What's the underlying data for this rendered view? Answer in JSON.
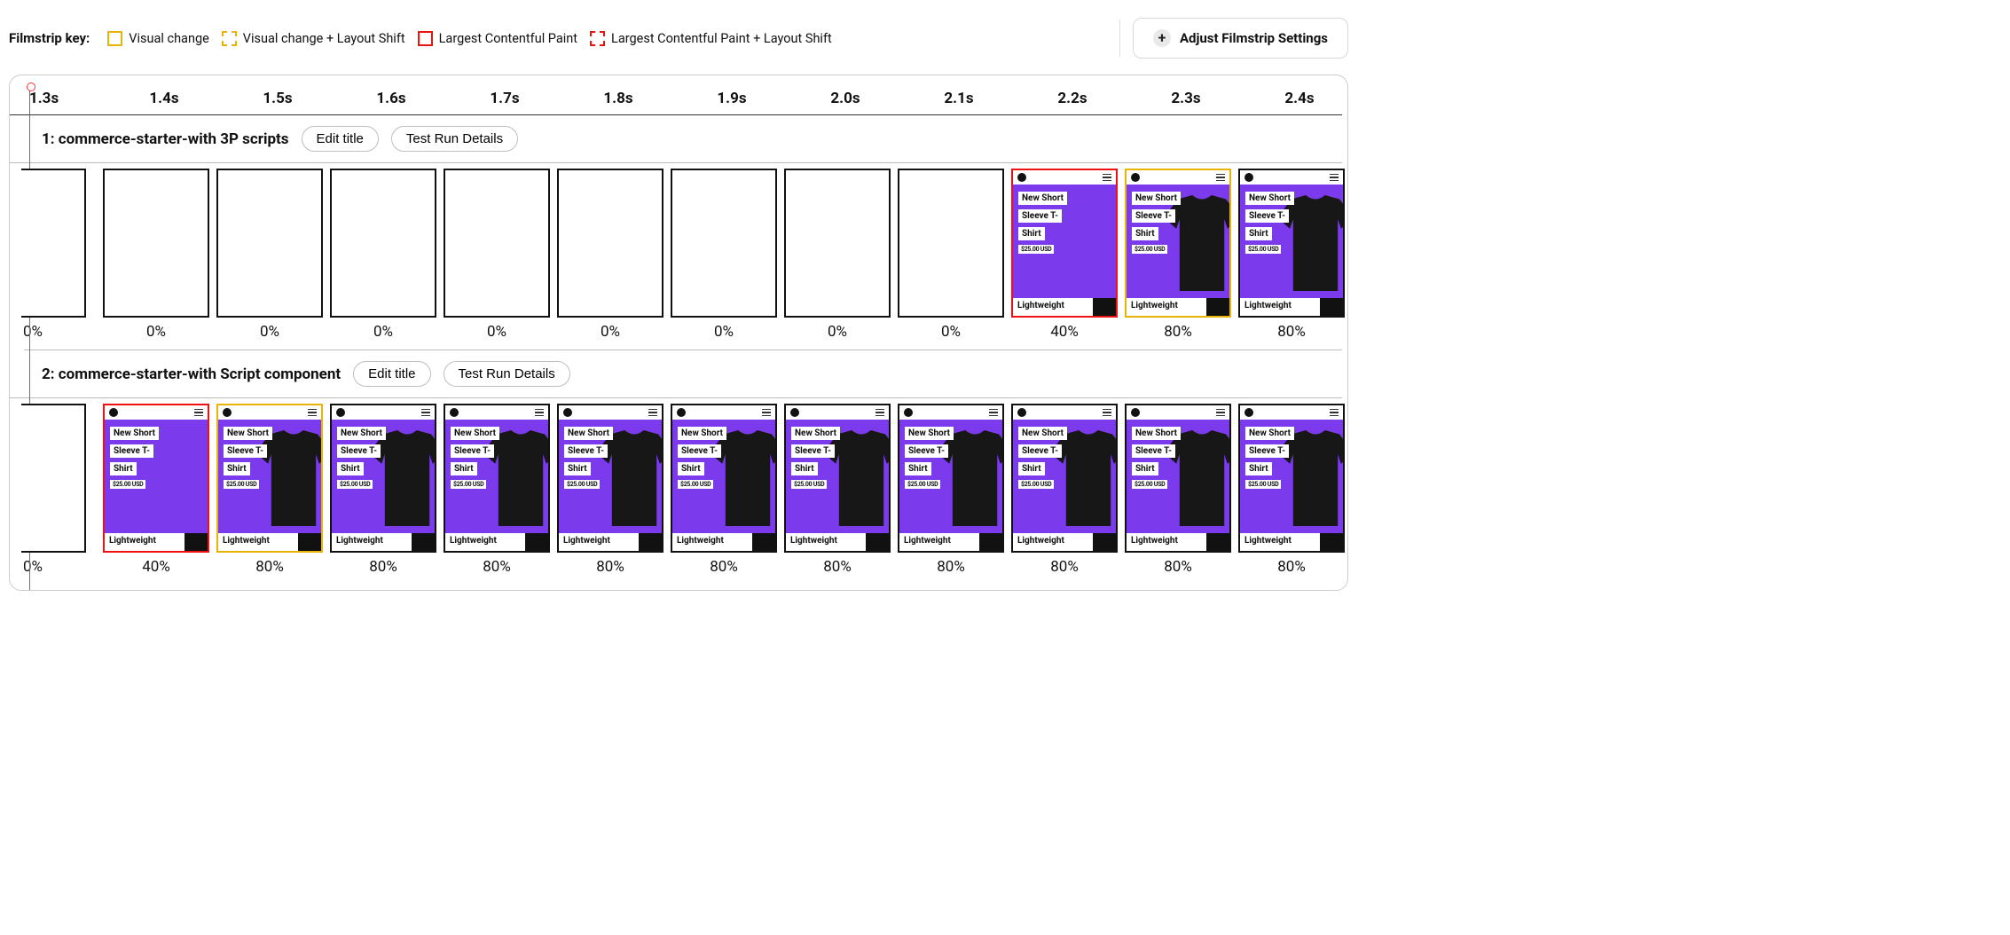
{
  "legend": {
    "key_label": "Filmstrip key:",
    "items": [
      {
        "cls": "visual-change",
        "label": "Visual change"
      },
      {
        "cls": "visual-change-ls",
        "label": "Visual change + Layout Shift"
      },
      {
        "cls": "lcp",
        "label": "Largest Contentful Paint"
      },
      {
        "cls": "lcp-ls",
        "label": "Largest Contentful Paint + Layout Shift"
      }
    ]
  },
  "adjust_button_label": "Adjust Filmstrip Settings",
  "timeline": {
    "ticks": [
      "1.3s",
      "1.4s",
      "1.5s",
      "1.6s",
      "1.7s",
      "1.8s",
      "1.9s",
      "2.0s",
      "2.1s",
      "2.2s",
      "2.3s",
      "2.4s"
    ]
  },
  "colors": {
    "visual_change": "#eab308",
    "lcp": "#ee1111",
    "frame_border": "#111111",
    "product_bg": "#7c3aed",
    "tshirt": "#171717"
  },
  "product_mock": {
    "title_lines": [
      "New Short",
      "Sleeve T-",
      "Shirt"
    ],
    "price": "$25.00 USD",
    "bottom_tag": "Lightweight",
    "show_tshirt_for_progress_ge": 80
  },
  "tests": [
    {
      "title": "1: commerce-starter-with 3P scripts",
      "edit_label": "Edit title",
      "details_label": "Test Run Details",
      "frames": [
        {
          "progress": "0%",
          "state": "blank",
          "border": "normal"
        },
        {
          "progress": "0%",
          "state": "blank",
          "border": "normal"
        },
        {
          "progress": "0%",
          "state": "blank",
          "border": "normal"
        },
        {
          "progress": "0%",
          "state": "blank",
          "border": "normal"
        },
        {
          "progress": "0%",
          "state": "blank",
          "border": "normal"
        },
        {
          "progress": "0%",
          "state": "blank",
          "border": "normal"
        },
        {
          "progress": "0%",
          "state": "blank",
          "border": "normal"
        },
        {
          "progress": "0%",
          "state": "blank",
          "border": "normal"
        },
        {
          "progress": "0%",
          "state": "blank",
          "border": "normal"
        },
        {
          "progress": "40%",
          "state": "loaded",
          "border": "lcp"
        },
        {
          "progress": "80%",
          "state": "loaded",
          "border": "vchange"
        },
        {
          "progress": "80%",
          "state": "loaded",
          "border": "normal"
        }
      ]
    },
    {
      "title": "2: commerce-starter-with Script component",
      "edit_label": "Edit title",
      "details_label": "Test Run Details",
      "frames": [
        {
          "progress": "0%",
          "state": "blank",
          "border": "normal"
        },
        {
          "progress": "40%",
          "state": "loaded",
          "border": "lcp"
        },
        {
          "progress": "80%",
          "state": "loaded",
          "border": "vchange"
        },
        {
          "progress": "80%",
          "state": "loaded",
          "border": "normal"
        },
        {
          "progress": "80%",
          "state": "loaded",
          "border": "normal"
        },
        {
          "progress": "80%",
          "state": "loaded",
          "border": "normal"
        },
        {
          "progress": "80%",
          "state": "loaded",
          "border": "normal"
        },
        {
          "progress": "80%",
          "state": "loaded",
          "border": "normal"
        },
        {
          "progress": "80%",
          "state": "loaded",
          "border": "normal"
        },
        {
          "progress": "80%",
          "state": "loaded",
          "border": "normal"
        },
        {
          "progress": "80%",
          "state": "loaded",
          "border": "normal"
        },
        {
          "progress": "80%",
          "state": "loaded",
          "border": "normal"
        }
      ]
    }
  ]
}
